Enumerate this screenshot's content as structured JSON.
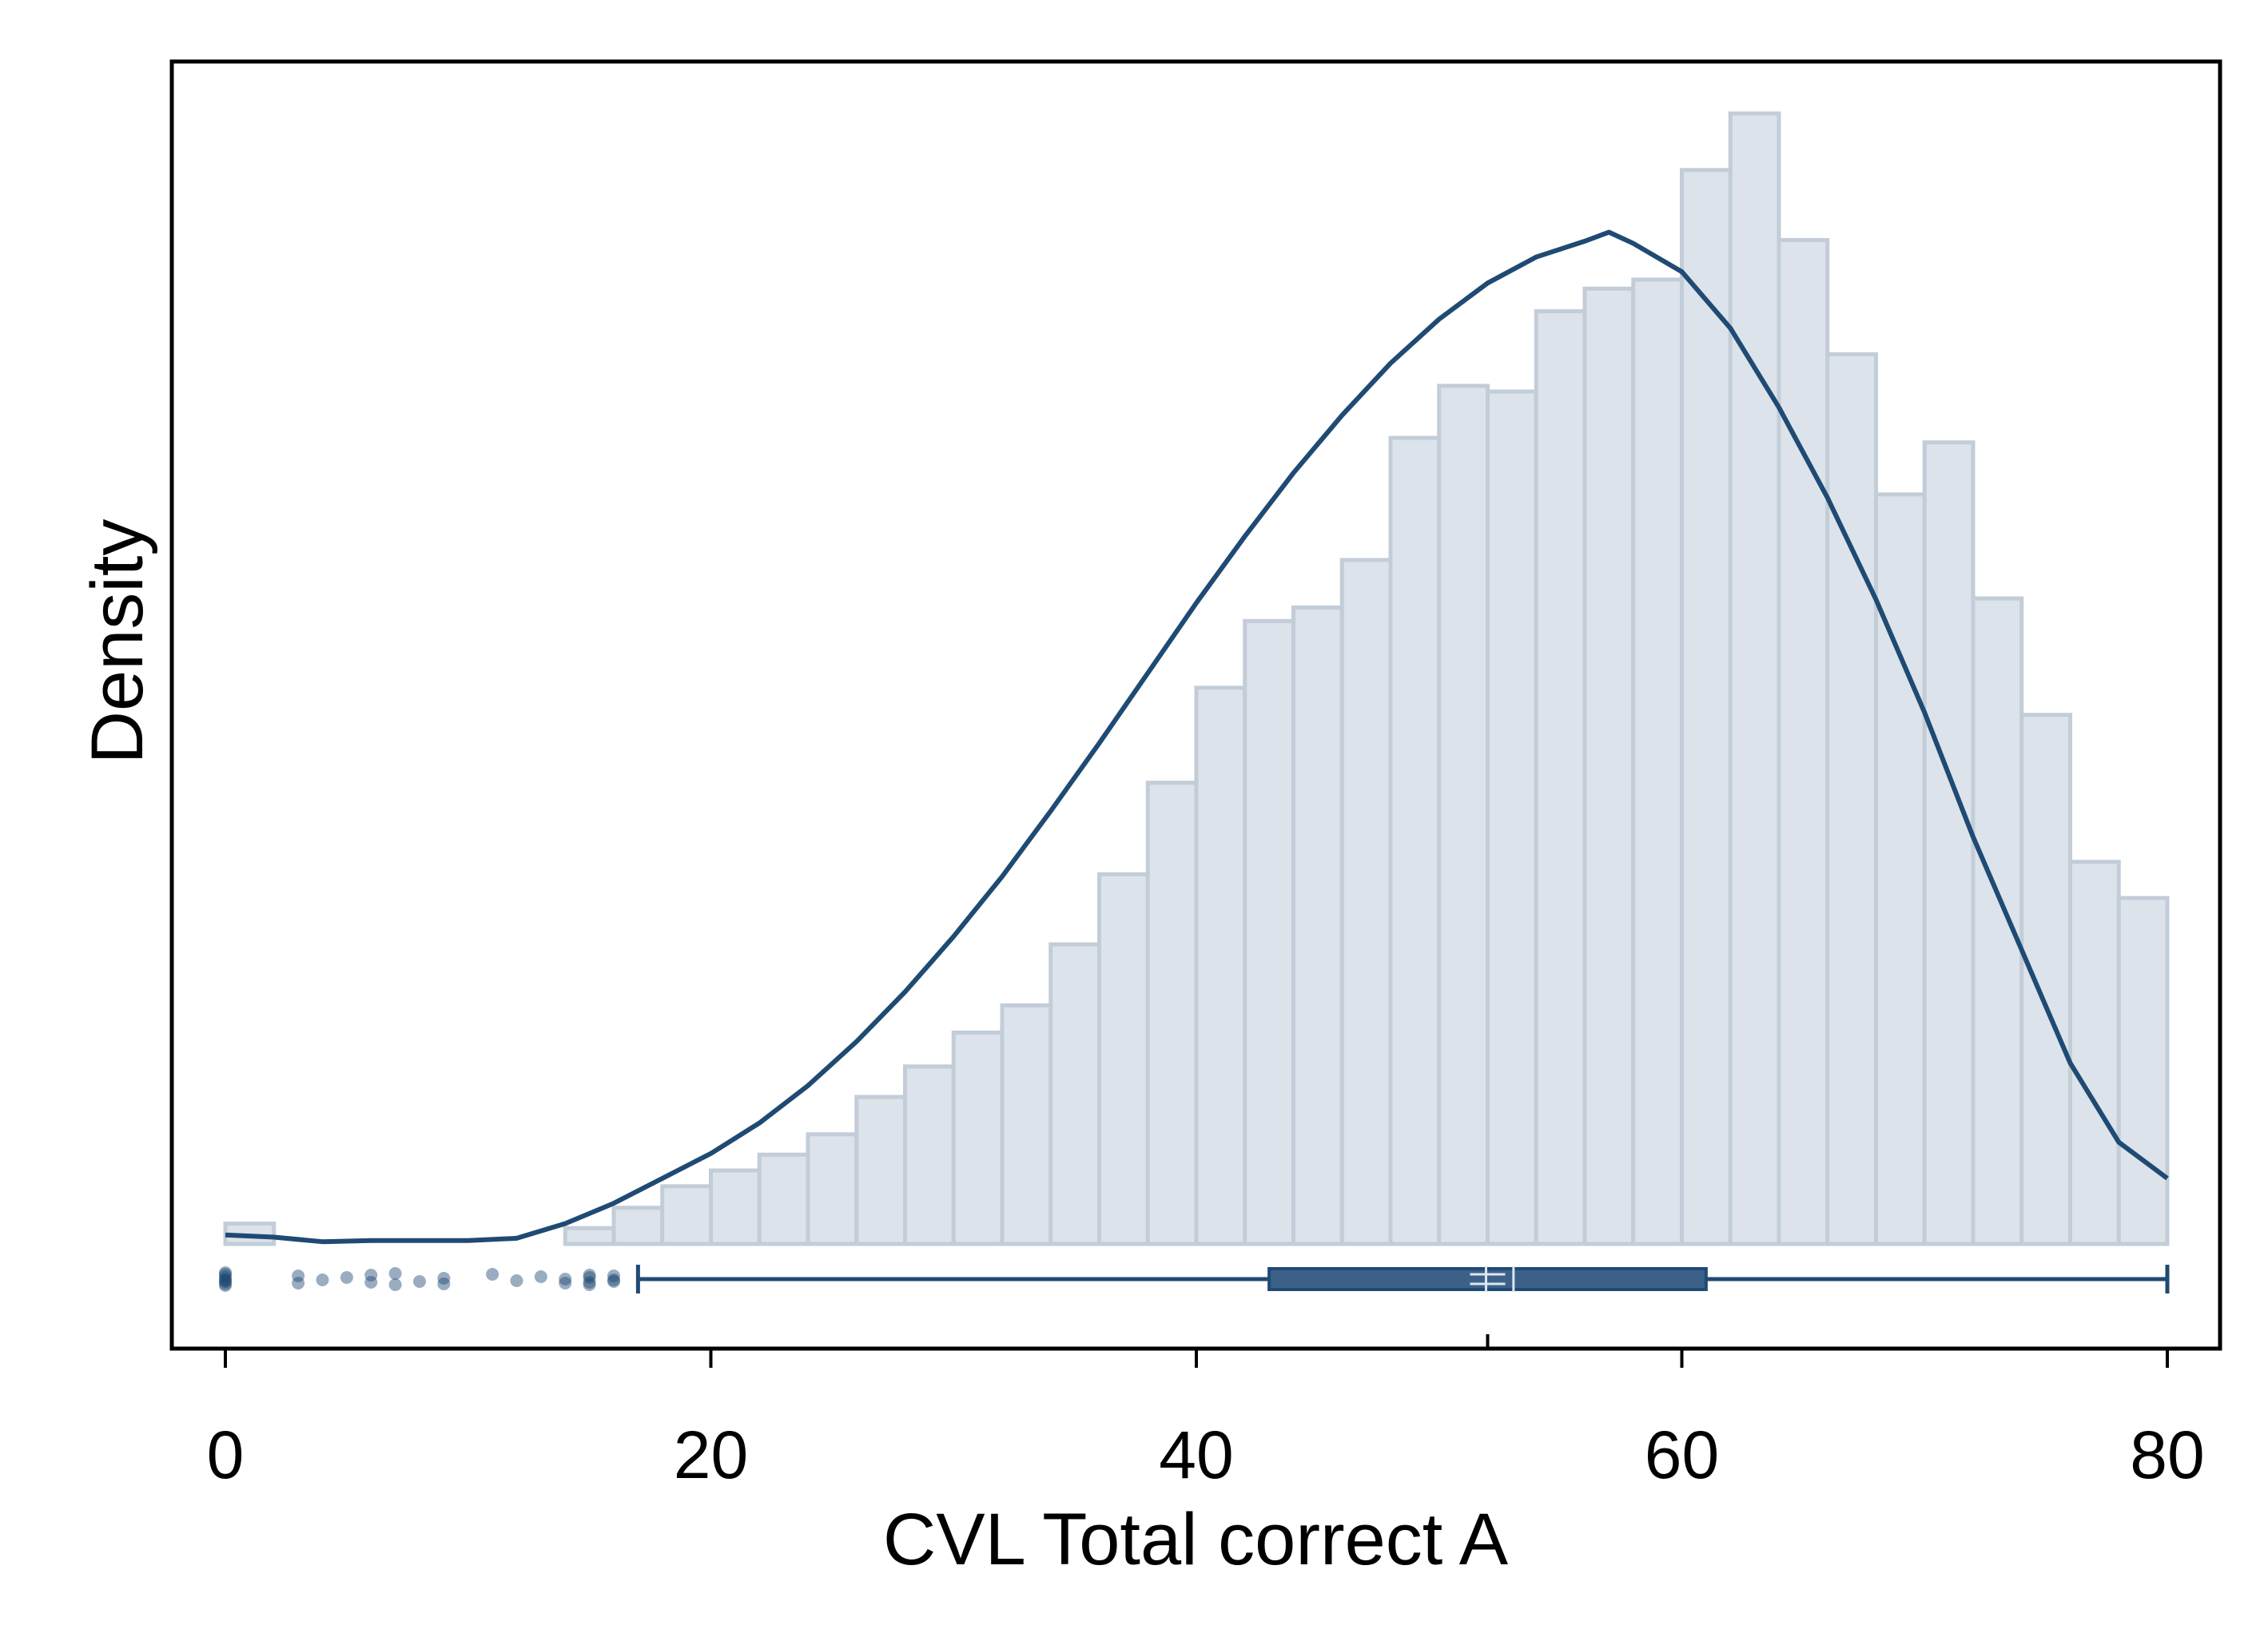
{
  "chart_data": {
    "type": "histogram",
    "xlabel": "CVL Total correct A",
    "ylabel": "Density",
    "xlim": [
      -2.2,
      82.2
    ],
    "x_ticks": [
      0,
      20,
      40,
      60,
      80
    ],
    "x_tick_labels": [
      "0",
      "20",
      "40",
      "60",
      "80"
    ],
    "y_ticks": [],
    "ylim": [
      0,
      1.1
    ],
    "grid": false,
    "legend": "none",
    "histogram": {
      "bin_width": 2,
      "bin_starts": [
        0,
        2,
        4,
        6,
        8,
        10,
        12,
        14,
        16,
        18,
        20,
        22,
        24,
        26,
        28,
        30,
        32,
        34,
        36,
        38,
        40,
        42,
        44,
        46,
        48,
        50,
        52,
        54,
        56,
        58,
        60,
        62,
        64,
        66,
        68,
        70,
        72,
        74,
        76,
        78
      ],
      "heights": [
        0.018,
        0.0,
        0.0,
        0.0,
        0.0,
        0.0,
        0.0,
        0.014,
        0.032,
        0.051,
        0.065,
        0.079,
        0.097,
        0.13,
        0.157,
        0.187,
        0.211,
        0.265,
        0.327,
        0.408,
        0.492,
        0.551,
        0.563,
        0.605,
        0.713,
        0.759,
        0.754,
        0.825,
        0.845,
        0.853,
        0.95,
        1.0,
        0.888,
        0.787,
        0.663,
        0.709,
        0.571,
        0.468,
        0.338,
        0.306
      ]
    },
    "density_curve": {
      "x": [
        0,
        2,
        4,
        6,
        8,
        10,
        12,
        14,
        16,
        18,
        20,
        22,
        24,
        26,
        28,
        30,
        32,
        34,
        36,
        38,
        40,
        42,
        44,
        46,
        48,
        50,
        52,
        54,
        56,
        57,
        58,
        60,
        62,
        64,
        66,
        68,
        70,
        72,
        74,
        76,
        78,
        80
      ],
      "y": [
        0.008,
        0.006,
        0.002,
        0.003,
        0.003,
        0.003,
        0.005,
        0.018,
        0.036,
        0.058,
        0.08,
        0.107,
        0.14,
        0.179,
        0.223,
        0.272,
        0.325,
        0.383,
        0.443,
        0.505,
        0.567,
        0.626,
        0.682,
        0.733,
        0.779,
        0.818,
        0.85,
        0.873,
        0.887,
        0.895,
        0.885,
        0.86,
        0.81,
        0.74,
        0.66,
        0.57,
        0.47,
        0.36,
        0.26,
        0.16,
        0.09,
        0.058
      ]
    },
    "boxplot": {
      "whisker_low": 17,
      "q1": 43,
      "median": 52,
      "q3": 61,
      "whisker_high": 80,
      "mean": 53
    },
    "outliers": [
      0,
      0,
      0,
      0,
      0,
      0,
      0,
      0,
      3,
      3,
      4,
      5,
      6,
      6,
      7,
      7,
      8,
      9,
      9,
      11,
      12,
      13,
      14,
      14,
      15,
      15,
      15,
      15,
      16,
      16,
      16
    ]
  },
  "colors": {
    "bar_fill": "#dce3ea",
    "bar_stroke": "#c2cdd8",
    "curve": "#1f4a73",
    "box_fill": "#3c6189",
    "box_stroke": "#1f4a73",
    "median_mark": "#dce6f0",
    "outlier": "#1f4a73"
  }
}
